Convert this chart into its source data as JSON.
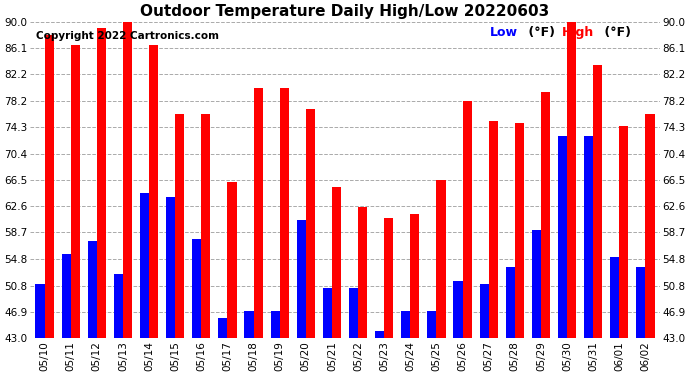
{
  "title": "Outdoor Temperature Daily High/Low 20220603",
  "copyright": "Copyright 2022 Cartronics.com",
  "legend_low_label": "Low",
  "legend_high_label": "High",
  "legend_unit": "(°F)",
  "dates": [
    "05/10",
    "05/11",
    "05/12",
    "05/13",
    "05/14",
    "05/15",
    "05/16",
    "05/17",
    "05/18",
    "05/19",
    "05/20",
    "05/21",
    "05/22",
    "05/23",
    "05/24",
    "05/25",
    "05/26",
    "05/27",
    "05/28",
    "05/29",
    "05/30",
    "05/31",
    "06/01",
    "06/02"
  ],
  "highs": [
    88.0,
    86.5,
    89.0,
    90.0,
    86.5,
    76.3,
    76.3,
    66.2,
    80.2,
    80.2,
    77.0,
    65.5,
    62.5,
    60.8,
    61.5,
    66.5,
    78.2,
    75.2,
    75.0,
    79.5,
    90.0,
    83.5,
    74.5,
    76.3
  ],
  "lows": [
    51.0,
    55.5,
    57.5,
    52.5,
    64.5,
    64.0,
    57.8,
    46.0,
    47.0,
    47.0,
    60.5,
    50.5,
    50.5,
    44.0,
    47.0,
    47.0,
    51.5,
    51.0,
    53.5,
    59.0,
    73.0,
    73.0,
    55.0,
    53.5
  ],
  "ylim": [
    43.0,
    90.0
  ],
  "yticks": [
    43.0,
    46.9,
    50.8,
    54.8,
    58.7,
    62.6,
    66.5,
    70.4,
    74.3,
    78.2,
    82.2,
    86.1,
    90.0
  ],
  "bar_color_high": "#FF0000",
  "bar_color_low": "#0000FF",
  "grid_color": "#AAAAAA",
  "background_color": "#FFFFFF",
  "title_fontsize": 11,
  "copyright_fontsize": 7.5,
  "tick_fontsize": 7.5,
  "legend_fontsize": 9
}
